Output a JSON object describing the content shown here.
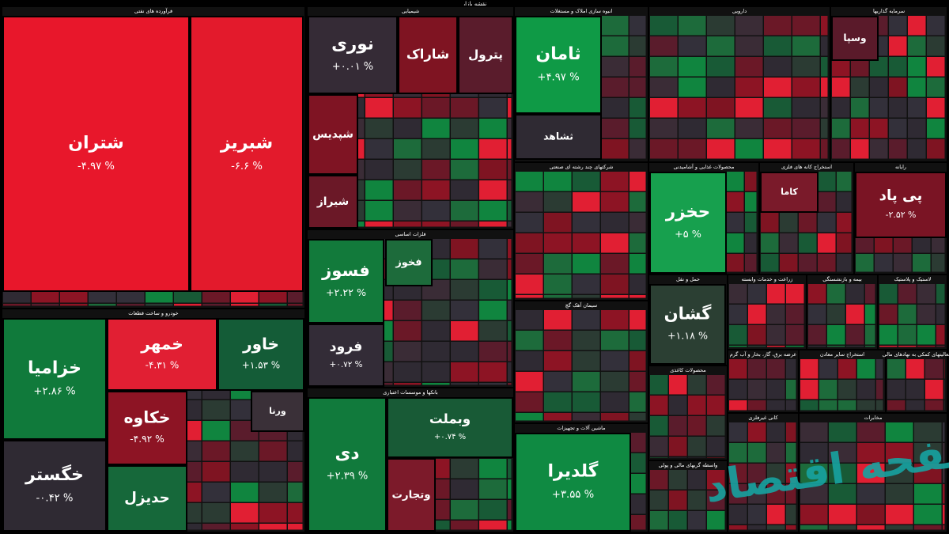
{
  "title": "نقشه بازار",
  "watermark": "صفحه اقتصاد",
  "sectors": [
    {
      "name": "فرآورده های نفتی",
      "tiles": [
        {
          "label": "شتران",
          "change": "-۴.۹۷ %",
          "color": "#e8172b"
        },
        {
          "label": "شبریز",
          "change": "-۶.۶ %",
          "color": "#e31a2c"
        }
      ]
    },
    {
      "name": "خودرو و ساخت قطعات",
      "tiles": [
        {
          "label": "خزامیا",
          "change": "+۲.۸۶ %",
          "color": "#107a3b"
        },
        {
          "label": "خگستر",
          "change": "-۰.۴۲ %",
          "color": "#2f2a33"
        },
        {
          "label": "خمهر",
          "change": "-۴.۳۱ %",
          "color": "#e11f33"
        },
        {
          "label": "خاور",
          "change": "+۱.۵۳ %",
          "color": "#145c37"
        },
        {
          "label": "خکاوه",
          "change": "-۴.۹۲ %",
          "color": "#8d1424"
        },
        {
          "label": "حدیزل",
          "color": "#16683a"
        },
        {
          "label": "ورنا",
          "color": "#3a3038"
        }
      ]
    },
    {
      "name": "شیمیایی",
      "tiles": [
        {
          "label": "نوری",
          "change": "+۰.۰۱ %",
          "color": "#352b36"
        },
        {
          "label": "شاراک",
          "color": "#7f1422"
        },
        {
          "label": "پترول",
          "color": "#5a1c2c"
        },
        {
          "label": "شپدیس",
          "color": "#7f1423"
        },
        {
          "label": "شیراز",
          "color": "#6b1827"
        }
      ]
    },
    {
      "name": "فلزات اساسی",
      "tiles": [
        {
          "label": "فسوز",
          "change": "+۲.۲۲ %",
          "color": "#127a3b"
        },
        {
          "label": "فرود",
          "change": "+۰.۷۲ %",
          "color": "#332c37"
        },
        {
          "label": "فخوز",
          "color": "#1d6b3b"
        }
      ]
    },
    {
      "name": "بانکها و موسسات اعتباری",
      "tiles": [
        {
          "label": "دی",
          "change": "+۲.۳۹ %",
          "color": "#117a3c"
        },
        {
          "label": "وبملت",
          "change": "+۰.۷۴ %",
          "color": "#185a36"
        },
        {
          "label": "وتجارت",
          "color": "#7c1a2a"
        }
      ]
    },
    {
      "name": "انبوه سازی املاک و مستغلات",
      "tiles": [
        {
          "label": "ثامان",
          "change": "+۴.۹۷ %",
          "color": "#0f9a46"
        },
        {
          "label": "ثشاهد",
          "color": "#2f2a33"
        }
      ]
    },
    {
      "name": "شرکتهای چند رشته ای صنعتی",
      "tiles": []
    },
    {
      "name": "سیمان آهک گچ",
      "tiles": []
    },
    {
      "name": "ماشین آلات و تجهیزات",
      "tiles": [
        {
          "label": "گلدیرا",
          "change": "+۳.۵۵ %",
          "color": "#0f8a42"
        }
      ]
    },
    {
      "name": "محصولات غذایی و آشامیدنی",
      "tiles": [
        {
          "label": "حخزر",
          "change": "+۵ %",
          "color": "#17a04e"
        }
      ]
    },
    {
      "name": "حمل و نقل",
      "tiles": [
        {
          "label": "گشان",
          "change": "+۱.۱۸ %",
          "color": "#2b3f33"
        }
      ]
    },
    {
      "name": "دارویی",
      "tiles": []
    },
    {
      "name": "سرمایه گذاریها",
      "tiles": [
        {
          "label": "وسپا",
          "color": "#5a1a2a"
        }
      ]
    },
    {
      "name": "استخراج کانه های فلزی",
      "tiles": [
        {
          "label": "کاما",
          "color": "#7a1a2a"
        }
      ]
    },
    {
      "name": "رایانه",
      "tiles": [
        {
          "label": "پی پاد",
          "change": "-۲.۵۲ %",
          "color": "#7a1424"
        }
      ]
    },
    {
      "name": "زراعت و خدمات وابسته",
      "tiles": []
    },
    {
      "name": "بیمه و بازنشستگی",
      "tiles": []
    },
    {
      "name": "لاستیک و پلاستیک",
      "tiles": []
    },
    {
      "name": "عرضه برق، گاز، بخار و آب گرم",
      "tiles": []
    },
    {
      "name": "استخراج سایر معادن",
      "tiles": []
    },
    {
      "name": "فعالیتهای کمکی به نهادهای مالی",
      "tiles": []
    },
    {
      "name": "محصولات کاغذی",
      "tiles": []
    },
    {
      "name": "واسطه گریهای مالی و پولی",
      "tiles": []
    },
    {
      "name": "کانی غیرفلزی",
      "tiles": []
    },
    {
      "name": "مخابرات",
      "tiles": []
    }
  ]
}
